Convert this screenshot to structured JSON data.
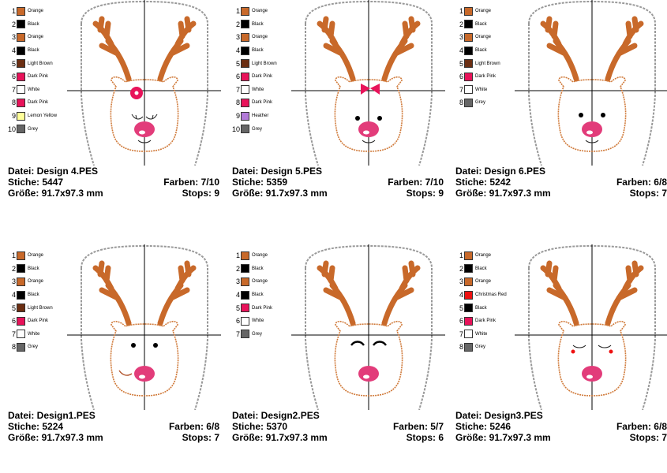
{
  "designs": [
    {
      "file_label": "Datei: Design 4.PES",
      "stitches_label": "Stiche: 5447",
      "size_label": "Größe: 91.7x97.3 mm",
      "colors_label": "Farben: 7/10",
      "stops_label": "Stops: 9",
      "face": "bow-flower",
      "colors": [
        {
          "num": "1",
          "name": "Orange",
          "hex": "#c8692a"
        },
        {
          "num": "2",
          "name": "Black",
          "hex": "#000000"
        },
        {
          "num": "3",
          "name": "Orange",
          "hex": "#c8692a"
        },
        {
          "num": "4",
          "name": "Black",
          "hex": "#000000"
        },
        {
          "num": "5",
          "name": "Light Brown",
          "hex": "#6b2e12"
        },
        {
          "num": "6",
          "name": "Dark Pink",
          "hex": "#e8135a"
        },
        {
          "num": "7",
          "name": "White",
          "hex": "#ffffff"
        },
        {
          "num": "8",
          "name": "Dark Pink",
          "hex": "#e8135a"
        },
        {
          "num": "9",
          "name": "Lemon Yellow",
          "hex": "#ffff99"
        },
        {
          "num": "10",
          "name": "Grey",
          "hex": "#666666"
        }
      ]
    },
    {
      "file_label": "Datei: Design 5.PES",
      "stitches_label": "Stiche: 5359",
      "size_label": "Größe: 91.7x97.3 mm",
      "colors_label": "Farben: 7/10",
      "stops_label": "Stops: 9",
      "face": "bow",
      "colors": [
        {
          "num": "1",
          "name": "Orange",
          "hex": "#c8692a"
        },
        {
          "num": "2",
          "name": "Black",
          "hex": "#000000"
        },
        {
          "num": "3",
          "name": "Orange",
          "hex": "#c8692a"
        },
        {
          "num": "4",
          "name": "Black",
          "hex": "#000000"
        },
        {
          "num": "5",
          "name": "Light Brown",
          "hex": "#6b2e12"
        },
        {
          "num": "6",
          "name": "Dark Pink",
          "hex": "#e8135a"
        },
        {
          "num": "7",
          "name": "White",
          "hex": "#ffffff"
        },
        {
          "num": "8",
          "name": "Dark Pink",
          "hex": "#e8135a"
        },
        {
          "num": "9",
          "name": "Heather",
          "hex": "#b27ad8"
        },
        {
          "num": "10",
          "name": "Grey",
          "hex": "#666666"
        }
      ]
    },
    {
      "file_label": "Datei: Design 6.PES",
      "stitches_label": "Stiche: 5242",
      "size_label": "Größe: 91.7x97.3 mm",
      "colors_label": "Farben: 6/8",
      "stops_label": "Stops: 7",
      "face": "dots",
      "colors": [
        {
          "num": "1",
          "name": "Orange",
          "hex": "#c8692a"
        },
        {
          "num": "2",
          "name": "Black",
          "hex": "#000000"
        },
        {
          "num": "3",
          "name": "Orange",
          "hex": "#c8692a"
        },
        {
          "num": "4",
          "name": "Black",
          "hex": "#000000"
        },
        {
          "num": "5",
          "name": "Light Brown",
          "hex": "#6b2e12"
        },
        {
          "num": "6",
          "name": "Dark Pink",
          "hex": "#e8135a"
        },
        {
          "num": "7",
          "name": "White",
          "hex": "#ffffff"
        },
        {
          "num": "8",
          "name": "Grey",
          "hex": "#666666"
        }
      ]
    },
    {
      "file_label": "Datei: Design1.PES",
      "stitches_label": "Stiche: 5224",
      "size_label": "Größe: 91.7x97.3 mm",
      "colors_label": "Farben: 6/8",
      "stops_label": "Stops: 7",
      "face": "smirk",
      "colors": [
        {
          "num": "1",
          "name": "Orange",
          "hex": "#c8692a"
        },
        {
          "num": "2",
          "name": "Black",
          "hex": "#000000"
        },
        {
          "num": "3",
          "name": "Orange",
          "hex": "#c8692a"
        },
        {
          "num": "4",
          "name": "Black",
          "hex": "#000000"
        },
        {
          "num": "5",
          "name": "Light Brown",
          "hex": "#6b2e12"
        },
        {
          "num": "6",
          "name": "Dark Pink",
          "hex": "#e8135a"
        },
        {
          "num": "7",
          "name": "White",
          "hex": "#ffffff"
        },
        {
          "num": "8",
          "name": "Grey",
          "hex": "#666666"
        }
      ]
    },
    {
      "file_label": "Datei: Design2.PES",
      "stitches_label": "Stiche: 5370",
      "size_label": "Größe: 91.7x97.3 mm",
      "colors_label": "Farben: 5/7",
      "stops_label": "Stops: 6",
      "face": "happy",
      "colors": [
        {
          "num": "1",
          "name": "Orange",
          "hex": "#c8692a"
        },
        {
          "num": "2",
          "name": "Black",
          "hex": "#000000"
        },
        {
          "num": "3",
          "name": "Orange",
          "hex": "#c8692a"
        },
        {
          "num": "4",
          "name": "Black",
          "hex": "#000000"
        },
        {
          "num": "5",
          "name": "Dark Pink",
          "hex": "#e8135a"
        },
        {
          "num": "6",
          "name": "White",
          "hex": "#ffffff"
        },
        {
          "num": "7",
          "name": "Grey",
          "hex": "#666666"
        }
      ]
    },
    {
      "file_label": "Datei: Design3.PES",
      "stitches_label": "Stiche: 5246",
      "size_label": "Größe: 91.7x97.3 mm",
      "colors_label": "Farben: 6/8",
      "stops_label": "Stops: 7",
      "face": "sleepy",
      "colors": [
        {
          "num": "1",
          "name": "Orange",
          "hex": "#c8692a"
        },
        {
          "num": "2",
          "name": "Black",
          "hex": "#000000"
        },
        {
          "num": "3",
          "name": "Orange",
          "hex": "#c8692a"
        },
        {
          "num": "4",
          "name": "Christmas Red",
          "hex": "#ee1111"
        },
        {
          "num": "5",
          "name": "Black",
          "hex": "#000000"
        },
        {
          "num": "6",
          "name": "Dark Pink",
          "hex": "#e8135a"
        },
        {
          "num": "7",
          "name": "White",
          "hex": "#ffffff"
        },
        {
          "num": "8",
          "name": "Grey",
          "hex": "#666666"
        }
      ]
    }
  ]
}
